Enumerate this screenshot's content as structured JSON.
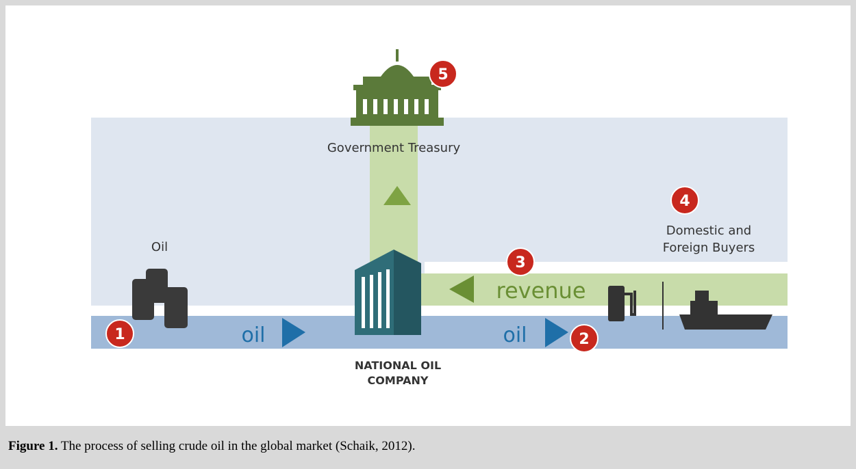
{
  "figure": {
    "labels": {
      "treasury": "Government Treasury",
      "buyers_line1": "Domestic and",
      "buyers_line2": "Foreign Buyers",
      "oil_source": "Oil",
      "oil_flow_1": "oil",
      "oil_flow_2": "oil",
      "revenue": "revenue",
      "company_line1": "NATIONAL OIL",
      "company_line2": "COMPANY"
    },
    "markers": [
      "1",
      "2",
      "3",
      "4",
      "5"
    ],
    "caption": {
      "label": "Figure 1.",
      "text": " The process of selling crude oil in the global market (Schaik, 2012)."
    }
  }
}
